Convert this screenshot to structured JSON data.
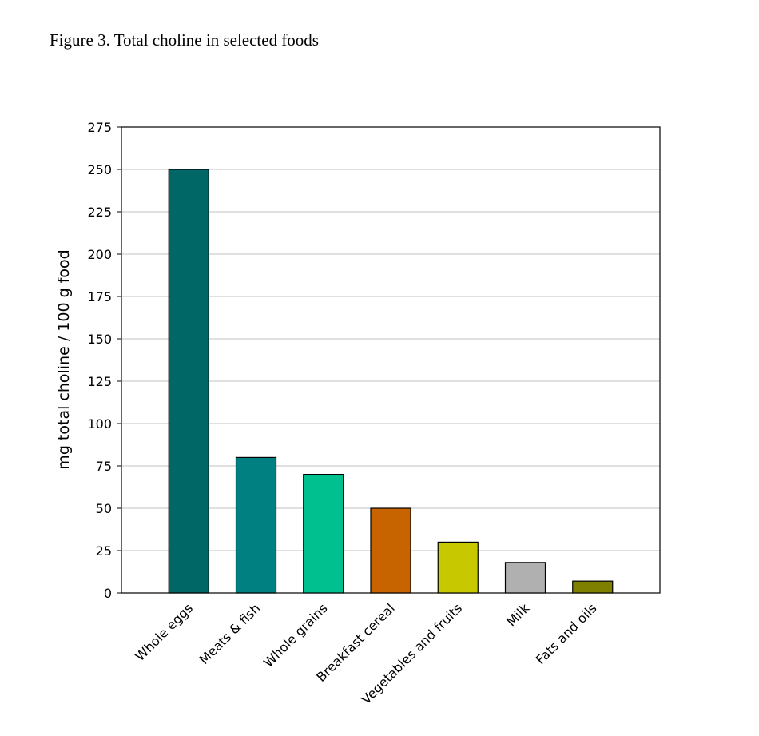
{
  "chart_data": {
    "type": "bar",
    "title": "Figure 3.  Total choline in selected foods",
    "y_label": "mg total choline / 100 g food",
    "categories": [
      "Whole eggs",
      "Meats & fish",
      "Whole grains",
      "Breakfast cereal",
      "Vegetables and fruits",
      "Milk",
      "Fats and oils"
    ],
    "values": [
      250,
      80,
      70,
      50,
      30,
      18,
      7
    ],
    "colors": [
      "#006666",
      "#008080",
      "#00c090",
      "#c86400",
      "#c8c800",
      "#b0b0b0",
      "#808000"
    ],
    "ylim": [
      0,
      275
    ],
    "yticks": [
      0,
      25,
      50,
      75,
      100,
      125,
      150,
      175,
      200,
      225,
      250,
      275
    ],
    "grid": true
  }
}
